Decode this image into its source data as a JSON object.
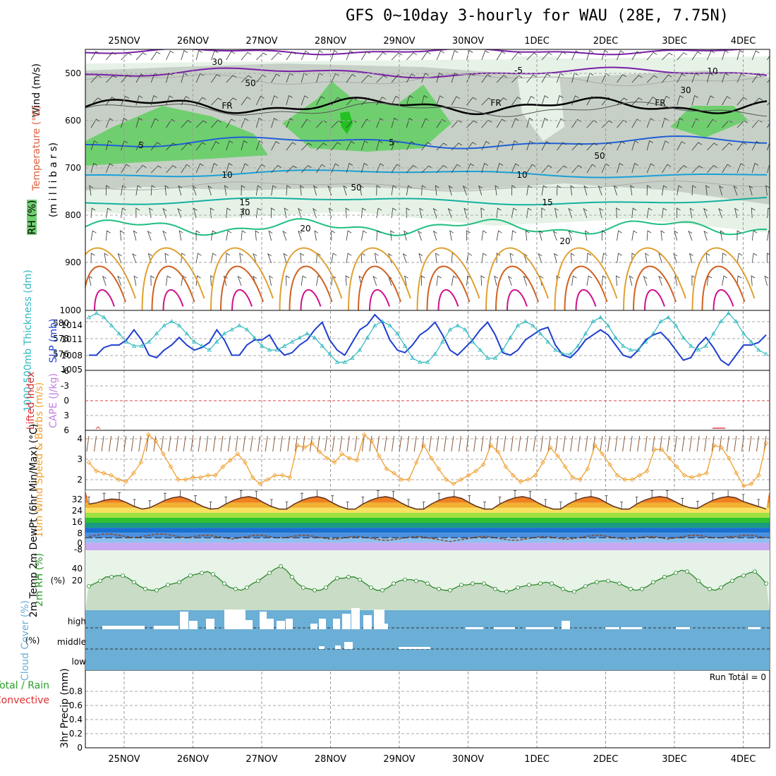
{
  "title": "GFS 0~10day 3-hourly for WAU (28E, 7.75N)",
  "run_total": "Run Total = 0",
  "colors": {
    "rh_dark": "#c8d0c8",
    "rh_light": "#e6f2e6",
    "rh_green": "#6fcf6f",
    "temp_purple": "#7a1fa8",
    "temp_blue": "#1f5fd6",
    "temp_cyan": "#1aa0d8",
    "temp_teal": "#15b0a0",
    "temp_green": "#1fbf80",
    "temp_orange": "#e0a030",
    "slp": "#1f3fd0",
    "thickness": "#30b8c0",
    "wind10m": "#f0a030",
    "cloud": "#6baed6",
    "dewpt": "#8a4a2a"
  },
  "chart_data": [
    {
      "type": "heatmap",
      "panel": "upper-air",
      "dates": [
        "25NOV",
        "26NOV",
        "27NOV",
        "28NOV",
        "29NOV",
        "30NOV",
        "1DEC",
        "2DEC",
        "3DEC",
        "4DEC"
      ],
      "ylabel_wind": "Wind (m/s)",
      "ylabel_temp": "Temperature (°C)",
      "ylabel_rh": "RH (%)",
      "ylabel_p": "(m i l l i b a r s)",
      "yticks": [
        "500",
        "600",
        "700",
        "800",
        "900",
        "1000"
      ],
      "contour_labels": [
        "-5",
        "FR",
        "FR",
        "FR",
        "5",
        "5",
        "10",
        "10",
        "15",
        "15",
        "20",
        "20",
        "30",
        "30",
        "50",
        "50",
        "50",
        "10",
        "30"
      ]
    },
    {
      "type": "line",
      "panel": "thickness-slp",
      "ylabel_left": "1000-500mb Thickness (dm)",
      "ylabel_right": "SLP (mb)",
      "yticks_left": [
        "580",
        "578",
        "576"
      ],
      "yticks_right": [
        "1014",
        "1011",
        "1008",
        "1005"
      ],
      "ylim_left": [
        574.5,
        581.5
      ],
      "ylim_right": [
        1005,
        1016
      ],
      "series": [
        {
          "name": "SLP (mb)",
          "values": [
            1008,
            1008,
            1009.5,
            1010,
            1010,
            1011,
            1013,
            1011,
            1008,
            1007.5,
            1009,
            1010,
            1011.5,
            1010,
            1009,
            1009.5,
            1010.5,
            1013,
            1011,
            1008,
            1008,
            1010,
            1011,
            1011,
            1012,
            1009.5,
            1008,
            1008.5,
            1010,
            1011,
            1013,
            1014.5,
            1011,
            1009,
            1008,
            1010.5,
            1013,
            1014,
            1016,
            1014.5,
            1011,
            1009,
            1008.5,
            1010,
            1012,
            1013,
            1014.5,
            1012,
            1009,
            1008,
            1009.5,
            1011,
            1013,
            1014.5,
            1012,
            1008.5,
            1008,
            1009,
            1011,
            1012,
            1013,
            1013.5,
            1010,
            1008,
            1007.5,
            1009,
            1011,
            1012,
            1013,
            1012,
            1010,
            1008,
            1007.5,
            1009,
            1011,
            1012,
            1012.5,
            1011,
            1009,
            1007,
            1007.5,
            1010,
            1011.5,
            1009.5,
            1007,
            1006,
            1008,
            1010,
            1010,
            1010.5,
            1012
          ]
        },
        {
          "name": "1000-500mb Thickness (dm)",
          "values": [
            581,
            581.5,
            581,
            580,
            579,
            578,
            577.5,
            577.5,
            578,
            579,
            580,
            580.5,
            580,
            579,
            578,
            577.5,
            577,
            578,
            579,
            579.5,
            580,
            579.5,
            578.5,
            577.5,
            577,
            577,
            577.5,
            578,
            578.5,
            579,
            578.5,
            577.5,
            576.5,
            575.5,
            575.5,
            576,
            577,
            578.5,
            580,
            580.5,
            580,
            579,
            577.5,
            576,
            575.5,
            575.5,
            576.5,
            578,
            579.5,
            580,
            579.5,
            578,
            577,
            576,
            576,
            577,
            578.5,
            580,
            580.5,
            580,
            579,
            578,
            577,
            576.5,
            576.5,
            577.5,
            579,
            580.5,
            581,
            580,
            578.5,
            577.5,
            577,
            577,
            578,
            579,
            580.5,
            581,
            580,
            578.5,
            577.5,
            577,
            577.5,
            579,
            580.5,
            581.5,
            580.5,
            579,
            578,
            577,
            576.5
          ]
        }
      ]
    },
    {
      "type": "line",
      "panel": "instability",
      "ylabel_left": "Lifted Index",
      "ylabel_right": "CAPE (J/kg)",
      "yticks": [
        "-6",
        "-3",
        "0",
        "3",
        "6"
      ],
      "ylim": [
        -6,
        6
      ]
    },
    {
      "type": "line",
      "panel": "wind10m",
      "ylabel": "10m Wind Speed & Barbs (m/s)",
      "yticks": [
        "4",
        "3",
        "2"
      ],
      "ylim": [
        1.5,
        4.3
      ],
      "series": [
        {
          "name": "10m Wind Speed",
          "values": [
            2.8,
            2.4,
            2.3,
            2.2,
            2.0,
            1.9,
            2.3,
            2.8,
            4.1,
            3.8,
            3.2,
            2.6,
            2.0,
            2.0,
            2.1,
            2.1,
            2.2,
            2.2,
            2.6,
            2.9,
            3.2,
            2.8,
            2.1,
            1.8,
            2.0,
            2.2,
            2.2,
            2.1,
            3.6,
            3.5,
            3.7,
            3.3,
            3.0,
            2.8,
            3.2,
            3.0,
            2.9,
            4.1,
            3.8,
            3.1,
            2.5,
            2.3,
            2.0,
            2.0,
            2.8,
            3.6,
            3.0,
            2.5,
            2.0,
            1.8,
            2.0,
            2.2,
            2.4,
            2.7,
            3.6,
            3.3,
            2.6,
            2.2,
            1.9,
            2.0,
            2.2,
            2.8,
            3.5,
            3.1,
            2.6,
            2.1,
            2.0,
            2.5,
            3.6,
            3.2,
            2.7,
            2.2,
            2.0,
            2.0,
            2.2,
            2.4,
            3.4,
            3.4,
            3.0,
            2.6,
            2.2,
            2.1,
            2.2,
            2.3,
            3.6,
            3.5,
            3.0,
            2.3,
            1.7,
            1.8,
            2.2,
            3.7
          ]
        }
      ]
    },
    {
      "type": "area",
      "panel": "temperature",
      "ylabel": "2m Temp 2m DewPt (6hr Min/Max) (°C)",
      "yticks": [
        "32",
        "24",
        "16",
        "8",
        "0",
        "-8"
      ],
      "ylim": [
        -10,
        38
      ],
      "series": [
        {
          "name": "2m Temp",
          "values": [
            27,
            28,
            30,
            31,
            30.5,
            28,
            25,
            23,
            24,
            27,
            30,
            32,
            33,
            31,
            28,
            25,
            23,
            23.5,
            27,
            30,
            32,
            33,
            31.5,
            28,
            25,
            23,
            23,
            27,
            30,
            32,
            33,
            31.5,
            28,
            25,
            23,
            23,
            27,
            30,
            32,
            33,
            31.5,
            28,
            25,
            23,
            23,
            27,
            30,
            32,
            33,
            31.5,
            28,
            25,
            23,
            23,
            27,
            30,
            32,
            33,
            31.5,
            28,
            25,
            23,
            23,
            27,
            30,
            32,
            33,
            31.5,
            28,
            25,
            23,
            23,
            27,
            30,
            32,
            33,
            32,
            29,
            26,
            24,
            23.5,
            27,
            30,
            32,
            33,
            32,
            29,
            27,
            25,
            23
          ]
        },
        {
          "name": "2m DewPt",
          "values": [
            1,
            2,
            3,
            3,
            2,
            1,
            0,
            1,
            2,
            3,
            3,
            2,
            1,
            0,
            1,
            2,
            2,
            1,
            0,
            -1,
            0,
            1,
            2,
            2,
            1,
            0,
            0,
            1,
            2,
            2,
            1,
            0,
            -1,
            -1,
            0,
            1,
            1,
            0,
            -1,
            -2,
            -2,
            -1,
            0,
            1,
            1,
            0,
            -1,
            -2,
            -3,
            -2,
            -1,
            0,
            1,
            1,
            0,
            -1,
            -2,
            -2,
            -1,
            0,
            1,
            1,
            0,
            -1,
            -1,
            0,
            1,
            2,
            2,
            1,
            0,
            -1,
            -1,
            0,
            1,
            1,
            0,
            -1,
            0,
            1,
            2,
            2,
            1,
            0,
            0,
            1,
            1,
            2,
            2,
            1,
            0
          ]
        }
      ]
    },
    {
      "type": "area",
      "panel": "rh2m",
      "ylabel": "2m RH (%)",
      "yticks": [
        "40",
        "20"
      ],
      "ylim": [
        0,
        45
      ],
      "series": [
        {
          "name": "2m RH",
          "values": [
            18,
            20,
            22,
            25,
            25,
            26,
            26,
            24,
            21,
            18,
            16,
            15,
            15,
            17,
            19,
            20,
            21,
            24,
            26,
            27,
            28,
            29,
            27,
            24,
            20,
            17,
            16,
            15,
            17,
            20,
            22,
            25,
            28,
            31,
            33,
            30,
            25,
            20,
            17,
            16,
            15,
            15,
            17,
            21,
            24,
            24,
            25,
            25,
            23,
            20,
            17,
            15,
            15,
            17,
            20,
            22,
            23,
            23,
            22,
            22,
            20,
            17,
            16,
            15,
            15,
            17,
            19,
            19,
            20,
            20,
            20,
            18,
            16,
            14,
            14,
            15,
            17,
            18,
            19,
            19,
            20,
            21,
            20,
            18,
            16,
            14,
            14,
            16,
            18,
            20,
            21,
            22,
            22,
            21,
            20,
            18,
            16,
            15,
            16,
            18,
            21,
            23,
            25,
            26,
            28,
            30,
            29,
            26,
            22,
            18,
            16,
            15,
            17,
            20,
            22,
            25,
            26,
            28,
            29,
            25,
            20
          ]
        }
      ]
    },
    {
      "type": "bar",
      "panel": "cloud",
      "ylabel": "Cloud Cover (%)",
      "yticks": [
        "high",
        "middle",
        "low"
      ]
    },
    {
      "type": "bar",
      "panel": "precip",
      "ylabel_a": "Total / Rain",
      "ylabel_b": "Convective",
      "ylabel": "3hr Precip (mm)",
      "yticks": [
        "0.8",
        "0.6",
        "0.4",
        "0.2",
        "0"
      ],
      "ylim": [
        0,
        1
      ]
    }
  ]
}
